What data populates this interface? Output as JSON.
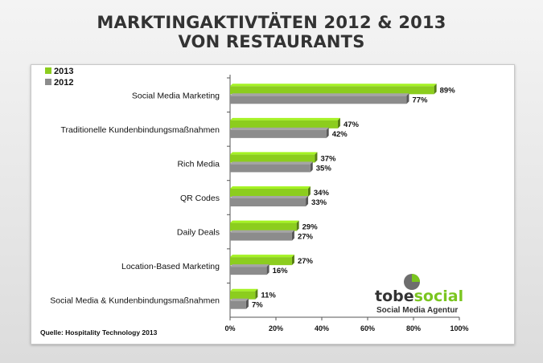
{
  "title_line1": "MARKTINGAKTIVTÄTEN 2012 & 2013",
  "title_line2": "VON RESTAURANTS",
  "source": "Quelle: Hospitality Technology 2013",
  "logo": {
    "part1": "tobe",
    "part2": "social",
    "tagline": "Social Media Agentur"
  },
  "colors": {
    "series2013": "#8ccd1e",
    "series2012": "#8c8c8c"
  },
  "chart_data": {
    "type": "bar",
    "orientation": "horizontal",
    "title": "MARKTINGAKTIVTÄTEN 2012 & 2013 VON RESTAURANTS",
    "categories": [
      "Social Media Marketing",
      "Traditionelle Kundenbindungsmaßnahmen",
      "Rich Media",
      "QR Codes",
      "Daily Deals",
      "Location-Based Marketing",
      "Social Media & Kundenbindungsmaßnahmen"
    ],
    "series": [
      {
        "name": "2013",
        "values": [
          89,
          47,
          37,
          34,
          29,
          27,
          11
        ]
      },
      {
        "name": "2012",
        "values": [
          77,
          42,
          35,
          33,
          27,
          16,
          7
        ]
      }
    ],
    "value_suffix": "%",
    "xlim": [
      0,
      100
    ],
    "xticks": [
      "0%",
      "20%",
      "40%",
      "60%",
      "80%",
      "100%"
    ],
    "legend_position": "top-left",
    "grid": false
  }
}
